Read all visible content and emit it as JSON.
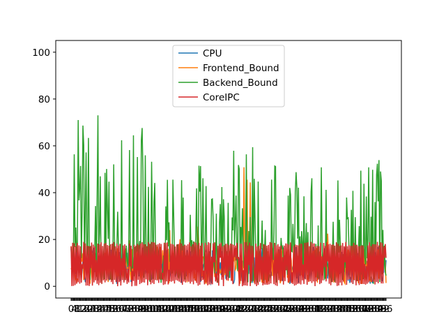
{
  "chart_data": {
    "type": "line",
    "title": "",
    "xlabel": "",
    "ylabel": "",
    "ylim": [
      -5,
      105
    ],
    "yticks": [
      0,
      20,
      40,
      60,
      80,
      100
    ],
    "x_count": 400,
    "x_tick_labels_overlapping": true,
    "legend_position": "upper center",
    "grid": false,
    "series": [
      {
        "name": "CPU",
        "color": "#1f77b4",
        "values": [
          10,
          3,
          15,
          8,
          12,
          5,
          17,
          2,
          9,
          14
        ]
      },
      {
        "name": "Frontend_Bound",
        "color": "#ff7f0e",
        "values": [
          18,
          20,
          22,
          28,
          47,
          60,
          17,
          27,
          18,
          60
        ]
      },
      {
        "name": "Backend_Bound",
        "color": "#2ca02c",
        "values": [
          70,
          76,
          68,
          56,
          50,
          64,
          52,
          51,
          50,
          55
        ]
      },
      {
        "name": "CoreIPC",
        "color": "#d62728",
        "values": [
          18,
          0,
          17,
          1,
          18,
          0,
          19,
          2,
          18,
          1
        ]
      }
    ]
  }
}
